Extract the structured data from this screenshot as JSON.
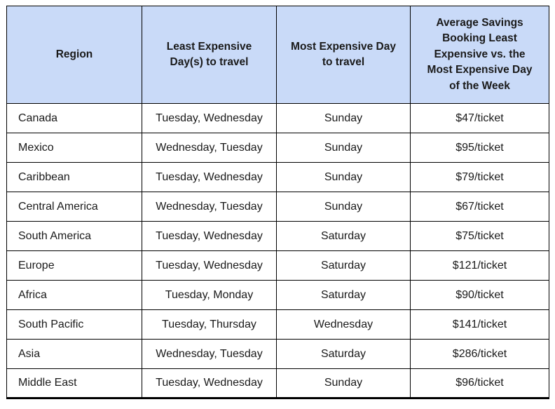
{
  "chart_data": {
    "type": "table",
    "columns": [
      "Region",
      "Least Expensive Day(s) to travel",
      "Most Expensive Day to travel",
      "Average Savings Booking Least Expensive vs. the Most Expensive Day of the Week"
    ],
    "rows": [
      [
        "Canada",
        "Tuesday, Wednesday",
        "Sunday",
        "$47/ticket"
      ],
      [
        "Mexico",
        "Wednesday, Tuesday",
        "Sunday",
        "$95/ticket"
      ],
      [
        "Caribbean",
        "Tuesday, Wednesday",
        "Sunday",
        "$79/ticket"
      ],
      [
        "Central America",
        "Wednesday, Tuesday",
        "Sunday",
        "$67/ticket"
      ],
      [
        "South America",
        "Tuesday, Wednesday",
        "Saturday",
        "$75/ticket"
      ],
      [
        "Europe",
        "Tuesday, Wednesday",
        "Saturday",
        "$121/ticket"
      ],
      [
        "Africa",
        "Tuesday, Monday",
        "Saturday",
        "$90/ticket"
      ],
      [
        "South Pacific",
        "Tuesday, Thursday",
        "Wednesday",
        "$141/ticket"
      ],
      [
        "Asia",
        "Wednesday, Tuesday",
        "Saturday",
        "$286/ticket"
      ],
      [
        "Middle East",
        "Tuesday, Wednesday",
        "Sunday",
        "$96/ticket"
      ]
    ]
  },
  "header": {
    "labels": [
      "Region",
      "Least Expensive\nDay(s) to travel",
      "Most Expensive Day\nto travel",
      "Average Savings\nBooking Least\nExpensive vs. the\nMost Expensive Day\nof the Week"
    ]
  },
  "colors": {
    "header_bg": "#c9daf8",
    "border": "#000000",
    "text": "#1a1a1a"
  }
}
